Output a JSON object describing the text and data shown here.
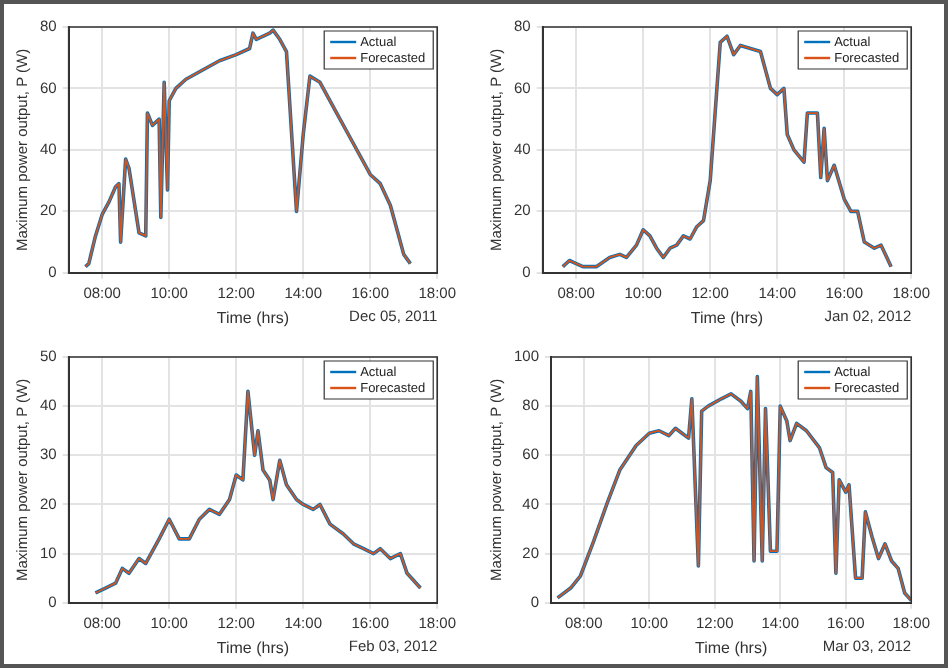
{
  "chart_data": [
    {
      "type": "line",
      "xlabel": "Time (hrs)",
      "ylabel": "Maximum power output, P (W)",
      "annotations": [
        "Dec 05, 2011"
      ],
      "xlim": [
        7,
        18
      ],
      "ylim": [
        0,
        80
      ],
      "xticks": [
        {
          "value": 8,
          "label": "08:00"
        },
        {
          "value": 10,
          "label": "10:00"
        },
        {
          "value": 12,
          "label": "12:00"
        },
        {
          "value": 14,
          "label": "14:00"
        },
        {
          "value": 16,
          "label": "16:00"
        },
        {
          "value": 18,
          "label": "18:00"
        }
      ],
      "yticks": [
        0,
        20,
        40,
        60,
        80
      ],
      "grid": true,
      "legend": "top right",
      "marker": "none",
      "line_style": "solid",
      "x": [
        7.5,
        7.6,
        7.8,
        8,
        8.2,
        8.4,
        8.5,
        8.55,
        8.7,
        8.8,
        9.0,
        9.1,
        9.3,
        9.35,
        9.5,
        9.7,
        9.75,
        9.85,
        9.95,
        10.0,
        10.2,
        10.5,
        11,
        11.5,
        12,
        12.4,
        12.5,
        12.6,
        13,
        13.1,
        13.3,
        13.5,
        13.8,
        14.0,
        14.2,
        14.5,
        15,
        15.5,
        16,
        16.3,
        16.6,
        16.8,
        17.0,
        17.2
      ],
      "series": [
        {
          "name": "Actual",
          "color": "#0072bd",
          "values": [
            2,
            3,
            12,
            19,
            23,
            28,
            29,
            10,
            37,
            34,
            20,
            13,
            12,
            52,
            48,
            50,
            18,
            62,
            27,
            56,
            60,
            63,
            66,
            69,
            71,
            73,
            78,
            76,
            78,
            79,
            76,
            72,
            20,
            45,
            64,
            62,
            52,
            42,
            32,
            29,
            22,
            14,
            6,
            3
          ]
        },
        {
          "name": "Forecasted",
          "color": "#d95319",
          "values": [
            2,
            3,
            12,
            19,
            23,
            28,
            29,
            10,
            37,
            34,
            20,
            13,
            12,
            52,
            48,
            50,
            18,
            62,
            27,
            56,
            60,
            63,
            66,
            69,
            71,
            73,
            78,
            76,
            78,
            79,
            76,
            72,
            20,
            45,
            64,
            62,
            52,
            42,
            32,
            29,
            22,
            14,
            6,
            3
          ]
        }
      ]
    },
    {
      "type": "line",
      "xlabel": "Time (hrs)",
      "ylabel": "Maximum power output, P (W)",
      "annotations": [
        "Jan 02, 2012"
      ],
      "xlim": [
        7,
        18
      ],
      "ylim": [
        0,
        80
      ],
      "xticks": [
        {
          "value": 8,
          "label": "08:00"
        },
        {
          "value": 10,
          "label": "10:00"
        },
        {
          "value": 12,
          "label": "12:00"
        },
        {
          "value": 14,
          "label": "14:00"
        },
        {
          "value": 16,
          "label": "16:00"
        },
        {
          "value": 18,
          "label": "18:00"
        }
      ],
      "yticks": [
        0,
        20,
        40,
        60,
        80
      ],
      "grid": true,
      "legend": "top right",
      "marker": "none",
      "line_style": "solid",
      "x": [
        7.6,
        7.8,
        8.0,
        8.2,
        8.6,
        9,
        9.3,
        9.5,
        9.8,
        10,
        10.2,
        10.4,
        10.6,
        10.8,
        11,
        11.2,
        11.4,
        11.6,
        11.8,
        12,
        12.2,
        12.3,
        12.5,
        12.7,
        12.9,
        13.5,
        13.8,
        14,
        14.2,
        14.3,
        14.5,
        14.8,
        14.9,
        15.2,
        15.3,
        15.4,
        15.5,
        15.7,
        16,
        16.2,
        16.4,
        16.6,
        16.9,
        17.1,
        17.4
      ],
      "series": [
        {
          "name": "Actual",
          "color": "#0072bd",
          "values": [
            2,
            4,
            3,
            2,
            2,
            5,
            6,
            5,
            9,
            14,
            12,
            8,
            5,
            8,
            9,
            12,
            11,
            15,
            17,
            30,
            60,
            75,
            77,
            71,
            74,
            72,
            60,
            58,
            60,
            45,
            40,
            36,
            52,
            52,
            31,
            47,
            30,
            35,
            24,
            20,
            20,
            10,
            8,
            9,
            2
          ]
        },
        {
          "name": "Forecasted",
          "color": "#d95319",
          "values": [
            2,
            4,
            3,
            2,
            2,
            5,
            6,
            5,
            9,
            14,
            12,
            8,
            5,
            8,
            9,
            12,
            11,
            15,
            17,
            30,
            60,
            75,
            77,
            71,
            74,
            72,
            60,
            58,
            60,
            45,
            40,
            36,
            52,
            52,
            31,
            47,
            30,
            35,
            24,
            20,
            20,
            10,
            8,
            9,
            2
          ]
        }
      ]
    },
    {
      "type": "line",
      "xlabel": "Time (hrs)",
      "ylabel": "Maximum power output, P (W)",
      "annotations": [
        "Feb 03, 2012"
      ],
      "xlim": [
        7,
        18
      ],
      "ylim": [
        0,
        50
      ],
      "xticks": [
        {
          "value": 8,
          "label": "08:00"
        },
        {
          "value": 10,
          "label": "10:00"
        },
        {
          "value": 12,
          "label": "12:00"
        },
        {
          "value": 14,
          "label": "14:00"
        },
        {
          "value": 16,
          "label": "16:00"
        },
        {
          "value": 18,
          "label": "18:00"
        }
      ],
      "yticks": [
        0,
        10,
        20,
        30,
        40,
        50
      ],
      "grid": true,
      "legend": "top right",
      "marker": "none",
      "line_style": "solid",
      "x": [
        7.8,
        8.1,
        8.4,
        8.6,
        8.8,
        9.1,
        9.3,
        9.7,
        10,
        10.3,
        10.6,
        10.9,
        11.2,
        11.5,
        11.8,
        12.0,
        12.2,
        12.35,
        12.55,
        12.65,
        12.8,
        13,
        13.1,
        13.3,
        13.5,
        13.8,
        14,
        14.3,
        14.5,
        14.8,
        15.2,
        15.5,
        15.8,
        16.1,
        16.3,
        16.6,
        16.9,
        17.1,
        17.5
      ],
      "series": [
        {
          "name": "Actual",
          "color": "#0072bd",
          "values": [
            2,
            3,
            4,
            7,
            6,
            9,
            8,
            13,
            17,
            13,
            13,
            17,
            19,
            18,
            21,
            26,
            25,
            43,
            30,
            35,
            27,
            25,
            21,
            29,
            24,
            21,
            20,
            19,
            20,
            16,
            14,
            12,
            11,
            10,
            11,
            9,
            10,
            6,
            3
          ]
        },
        {
          "name": "Forecasted",
          "color": "#d95319",
          "values": [
            2,
            3,
            4,
            7,
            6,
            9,
            8,
            13,
            17,
            13,
            13,
            17,
            19,
            18,
            21,
            26,
            25,
            43,
            30,
            35,
            27,
            25,
            21,
            29,
            24,
            21,
            20,
            19,
            20,
            16,
            14,
            12,
            11,
            10,
            11,
            9,
            10,
            6,
            3
          ]
        }
      ]
    },
    {
      "type": "line",
      "xlabel": "Time (hrs)",
      "ylabel": "Maximum power output, P (W)",
      "annotations": [
        "Mar 03, 2012"
      ],
      "xlim": [
        7,
        18
      ],
      "ylim": [
        0,
        100
      ],
      "xticks": [
        {
          "value": 8,
          "label": "08:00"
        },
        {
          "value": 10,
          "label": "10:00"
        },
        {
          "value": 12,
          "label": "12:00"
        },
        {
          "value": 14,
          "label": "14:00"
        },
        {
          "value": 16,
          "label": "16:00"
        },
        {
          "value": 18,
          "label": "18:00"
        }
      ],
      "yticks": [
        0,
        20,
        40,
        60,
        80,
        100
      ],
      "grid": true,
      "legend": "top right",
      "marker": "none",
      "line_style": "solid",
      "x": [
        7.2,
        7.6,
        7.9,
        8.3,
        8.7,
        9.1,
        9.6,
        10,
        10.3,
        10.6,
        10.8,
        11,
        11.2,
        11.3,
        11.5,
        11.6,
        11.8,
        12.2,
        12.5,
        12.8,
        13.0,
        13.1,
        13.2,
        13.3,
        13.45,
        13.55,
        13.7,
        13.9,
        14,
        14.2,
        14.3,
        14.5,
        14.8,
        15.2,
        15.4,
        15.6,
        15.7,
        15.8,
        16,
        16.1,
        16.3,
        16.5,
        16.6,
        16.8,
        17.0,
        17.2,
        17.4,
        17.6,
        17.8,
        18
      ],
      "series": [
        {
          "name": "Actual",
          "color": "#0072bd",
          "values": [
            2,
            6,
            11,
            25,
            40,
            54,
            64,
            69,
            70,
            68,
            71,
            69,
            67,
            83,
            15,
            78,
            80,
            83,
            85,
            82,
            79,
            86,
            17,
            92,
            17,
            79,
            21,
            21,
            80,
            74,
            66,
            73,
            70,
            63,
            55,
            53,
            12,
            50,
            45,
            48,
            10,
            10,
            37,
            27,
            18,
            24,
            17,
            14,
            4,
            1
          ]
        },
        {
          "name": "Forecasted",
          "color": "#d95319",
          "values": [
            2,
            6,
            11,
            25,
            40,
            54,
            64,
            69,
            70,
            68,
            71,
            69,
            67,
            83,
            15,
            78,
            80,
            83,
            85,
            82,
            79,
            86,
            17,
            92,
            17,
            79,
            21,
            21,
            80,
            74,
            66,
            73,
            70,
            63,
            55,
            53,
            12,
            50,
            45,
            48,
            10,
            10,
            37,
            27,
            18,
            24,
            17,
            14,
            4,
            1
          ]
        }
      ]
    }
  ]
}
